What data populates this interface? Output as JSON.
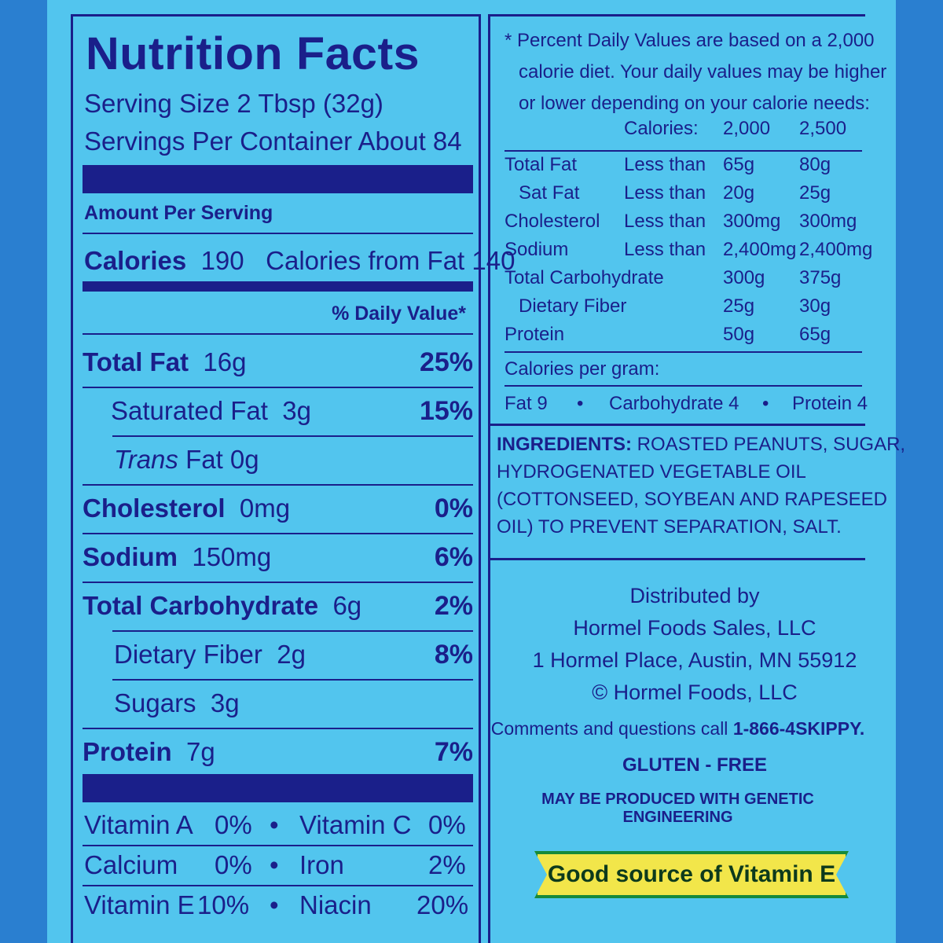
{
  "nutrition": {
    "title": "Nutrition Facts",
    "serving_size": "Serving Size  2 Tbsp (32g)",
    "servings_per_container": "Servings Per Container  About 84",
    "amount_per_serving": "Amount Per Serving",
    "calories_label": "Calories",
    "calories_value": "190",
    "calories_from_fat": "Calories from Fat 140",
    "daily_value_header": "% Daily Value*",
    "rows": [
      {
        "label": "Total Fat",
        "amount": "16g",
        "pct": "25%"
      },
      {
        "label": "Saturated Fat",
        "amount": "3g",
        "pct": "15%"
      },
      {
        "label": "Trans",
        "amount": "Fat 0g",
        "pct": ""
      },
      {
        "label": "Cholesterol",
        "amount": "0mg",
        "pct": "0%"
      },
      {
        "label": "Sodium",
        "amount": "150mg",
        "pct": "6%"
      },
      {
        "label": "Total Carbohydrate",
        "amount": "6g",
        "pct": "2%"
      },
      {
        "label": "Dietary Fiber",
        "amount": "2g",
        "pct": "8%"
      },
      {
        "label": "Sugars",
        "amount": "3g",
        "pct": ""
      },
      {
        "label": "Protein",
        "amount": "7g",
        "pct": "7%"
      }
    ],
    "vitamins": [
      {
        "a": "Vitamin A",
        "av": "0%",
        "b": "Vitamin C",
        "bv": "0%"
      },
      {
        "a": "Calcium",
        "av": "0%",
        "b": "Iron",
        "bv": "2%"
      },
      {
        "a": "Vitamin E",
        "av": "10%",
        "b": "Niacin",
        "bv": "20%"
      }
    ],
    "bullet": "•"
  },
  "daily_values": {
    "note": [
      "* Percent Daily Values are based on a 2,000",
      "calorie diet. Your daily values may be higher",
      "or lower depending on your calorie needs:"
    ],
    "header": {
      "calories": "Calories:",
      "c1": "2,000",
      "c2": "2,500"
    },
    "rows": [
      {
        "name": "Total Fat",
        "qual": "Less than",
        "v1": "65g",
        "v2": "80g"
      },
      {
        "name": "Sat Fat",
        "qual": "Less than",
        "v1": "20g",
        "v2": "25g"
      },
      {
        "name": "Cholesterol",
        "qual": "Less than",
        "v1": "300mg",
        "v2": "300mg"
      },
      {
        "name": "Sodium",
        "qual": "Less than",
        "v1": "2,400mg",
        "v2": "2,400mg"
      },
      {
        "name": "Total Carbohydrate",
        "qual": "",
        "v1": "300g",
        "v2": "375g"
      },
      {
        "name": "Dietary Fiber",
        "qual": "",
        "v1": "25g",
        "v2": "30g"
      },
      {
        "name": "Protein",
        "qual": "",
        "v1": "50g",
        "v2": "65g"
      }
    ],
    "per_gram_label": "Calories per gram:",
    "per_gram": {
      "fat": "Fat  9",
      "carb": "Carbohydrate  4",
      "protein": "Protein  4"
    }
  },
  "ingredients": {
    "label": "INGREDIENTS:",
    "lines": [
      " ROASTED PEANUTS, SUGAR,",
      "HYDROGENATED VEGETABLE OIL",
      "(COTTONSEED, SOYBEAN AND RAPESEED",
      "OIL) TO PREVENT SEPARATION, SALT."
    ]
  },
  "distributor": {
    "line1": "Distributed by",
    "line2": "Hormel Foods Sales, LLC",
    "line3": "1 Hormel Place, Austin, MN 55912",
    "line4": "© Hormel Foods, LLC",
    "comments": "Comments and questions call ",
    "phone": "1-866-4SKIPPY.",
    "gluten": "GLUTEN - FREE",
    "ge": "MAY BE PRODUCED WITH GENETIC ENGINEERING"
  },
  "badge": {
    "text": "Good source of Vitamin E"
  },
  "colors": {
    "background": "#52c5ee",
    "ink": "#1a1f8a",
    "badge_fill": "#f2e64a",
    "badge_border": "#178a3a",
    "outer": "#2a7fd0"
  }
}
